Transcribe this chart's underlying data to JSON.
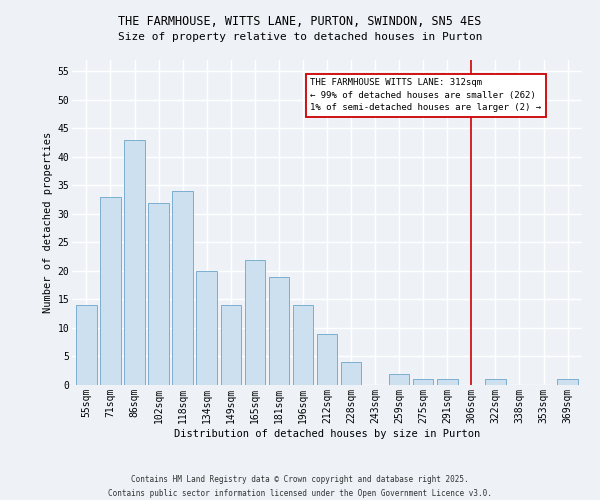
{
  "title": "THE FARMHOUSE, WITTS LANE, PURTON, SWINDON, SN5 4ES",
  "subtitle": "Size of property relative to detached houses in Purton",
  "xlabel": "Distribution of detached houses by size in Purton",
  "ylabel": "Number of detached properties",
  "bar_labels": [
    "55sqm",
    "71sqm",
    "86sqm",
    "102sqm",
    "118sqm",
    "134sqm",
    "149sqm",
    "165sqm",
    "181sqm",
    "196sqm",
    "212sqm",
    "228sqm",
    "243sqm",
    "259sqm",
    "275sqm",
    "291sqm",
    "306sqm",
    "322sqm",
    "338sqm",
    "353sqm",
    "369sqm"
  ],
  "bar_values": [
    14,
    33,
    43,
    32,
    34,
    20,
    14,
    22,
    19,
    14,
    9,
    4,
    0,
    2,
    1,
    1,
    0,
    1,
    0,
    0,
    1
  ],
  "bar_color": "#cce0f0",
  "bar_edge_color": "#7aaed0",
  "vline_x": 16,
  "vline_color": "#cc0000",
  "annotation_text": "THE FARMHOUSE WITTS LANE: 312sqm\n← 99% of detached houses are smaller (262)\n1% of semi-detached houses are larger (2) →",
  "annotation_box_color": "#ffffff",
  "annotation_box_edge": "#cc0000",
  "ylim": [
    0,
    57
  ],
  "yticks": [
    0,
    5,
    10,
    15,
    20,
    25,
    30,
    35,
    40,
    45,
    50,
    55
  ],
  "footer_line1": "Contains HM Land Registry data © Crown copyright and database right 2025.",
  "footer_line2": "Contains public sector information licensed under the Open Government Licence v3.0.",
  "bg_color": "#eef2f7",
  "plot_bg_color": "#eef2f7",
  "grid_color": "#ffffff",
  "title_fontsize": 8.5,
  "subtitle_fontsize": 8,
  "tick_fontsize": 7,
  "ylabel_fontsize": 7.5,
  "xlabel_fontsize": 7.5,
  "annot_fontsize": 6.5,
  "footer_fontsize": 5.5
}
